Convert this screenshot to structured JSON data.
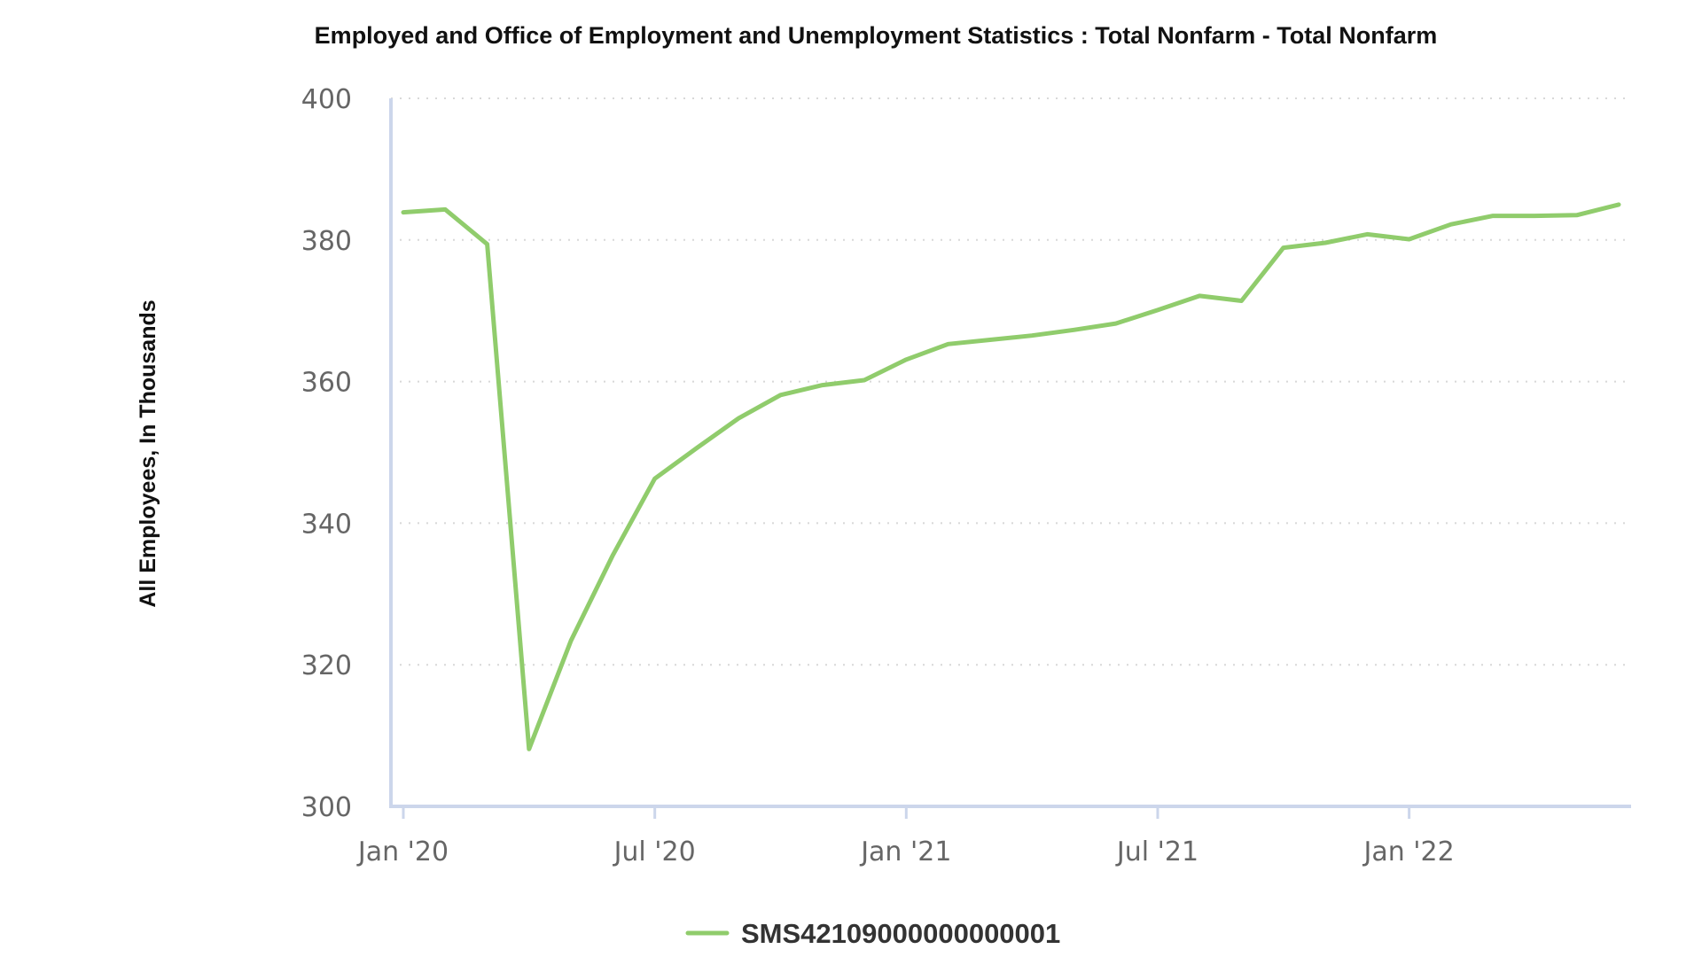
{
  "chart_data": {
    "type": "line",
    "title": "Employed and Office of Employment and Unemployment Statistics : Total Nonfarm - Total Nonfarm",
    "xlabel": "",
    "ylabel": "All Employees, In Thousands",
    "ylim": [
      300,
      400
    ],
    "yticks": [
      300,
      320,
      340,
      360,
      380,
      400
    ],
    "xticks": [
      {
        "date": "2020-01",
        "label": "Jan '20"
      },
      {
        "date": "2020-07",
        "label": "Jul '20"
      },
      {
        "date": "2021-01",
        "label": "Jan '21"
      },
      {
        "date": "2021-07",
        "label": "Jul '21"
      },
      {
        "date": "2022-01",
        "label": "Jan '22"
      }
    ],
    "x": [
      "2020-01",
      "2020-02",
      "2020-03",
      "2020-04",
      "2020-05",
      "2020-06",
      "2020-07",
      "2020-08",
      "2020-09",
      "2020-10",
      "2020-11",
      "2020-12",
      "2021-01",
      "2021-02",
      "2021-03",
      "2021-04",
      "2021-05",
      "2021-06",
      "2021-07",
      "2021-08",
      "2021-09",
      "2021-10",
      "2021-11",
      "2021-12",
      "2022-01",
      "2022-02",
      "2022-03",
      "2022-04",
      "2022-05",
      "2022-06"
    ],
    "xlim": [
      "2020-01",
      "2022-06"
    ],
    "grid": true,
    "legend_position": "bottom-center",
    "series": [
      {
        "name": "SMS42109000000000001",
        "color": "#90cc6c",
        "values": [
          383.9,
          384.3,
          379.4,
          308.1,
          323.4,
          335.5,
          346.3,
          350.6,
          354.8,
          358.1,
          359.5,
          360.2,
          363.1,
          365.3,
          365.9,
          366.5,
          367.3,
          368.2,
          370.1,
          372.1,
          371.4,
          378.9,
          379.6,
          380.8,
          380.1,
          382.2,
          383.4,
          383.4,
          383.5,
          385.0
        ]
      }
    ]
  }
}
